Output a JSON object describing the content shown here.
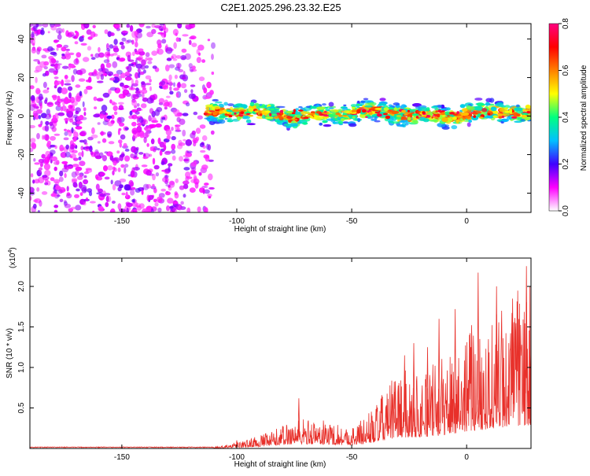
{
  "chart_data": [
    {
      "type": "heatmap",
      "title": "C2E1.2025.296.23.32.E25",
      "xlabel": "Height of straight line (km)",
      "ylabel": "Frequency (Hz)",
      "xlim": [
        -190,
        28
      ],
      "ylim": [
        -50,
        48
      ],
      "xticks": [
        -150,
        -100,
        -50,
        0
      ],
      "yticks": [
        -40,
        -20,
        0,
        20,
        40
      ],
      "noise_region_x": [
        -190,
        -110
      ],
      "signal_band": {
        "x_start": -113,
        "x_end": 28,
        "center_hz": 1,
        "half_width_hz": 7
      },
      "colorbar": {
        "label": "Normalized spectral amplitude",
        "range": [
          0.0,
          0.8
        ],
        "ticks": [
          "0.0",
          "0.2",
          "0.4",
          "0.6",
          "0.8"
        ],
        "colors": [
          "#ffffff",
          "#ff00ff",
          "#4000ff",
          "#00c0ff",
          "#00ff80",
          "#ffff00",
          "#ff8000",
          "#ff0000",
          "#ff0080"
        ]
      }
    },
    {
      "type": "line",
      "xlabel": "Height of straight line (km)",
      "ylabel": "SNR (10 * v/v)",
      "y_multiplier": "(x10",
      "y_multiplier_exp": "4",
      "y_multiplier_close": ")",
      "xlim": [
        -190,
        28
      ],
      "ylim": [
        0,
        2.35
      ],
      "xticks": [
        -150,
        -100,
        -50,
        0
      ],
      "yticks": [
        "0.5",
        "1.0",
        "1.5",
        "2.0"
      ],
      "ytick_values": [
        0.5,
        1.0,
        1.5,
        2.0
      ],
      "line_color": "#e8302a",
      "trend": [
        {
          "x": -190,
          "y": 0.01
        },
        {
          "x": -110,
          "y": 0.01
        },
        {
          "x": -100,
          "y": 0.04
        },
        {
          "x": -85,
          "y": 0.12
        },
        {
          "x": -75,
          "y": 0.22
        },
        {
          "x": -60,
          "y": 0.2
        },
        {
          "x": -50,
          "y": 0.15
        },
        {
          "x": -40,
          "y": 0.3
        },
        {
          "x": -30,
          "y": 0.55
        },
        {
          "x": -20,
          "y": 0.55
        },
        {
          "x": -10,
          "y": 0.65
        },
        {
          "x": 0,
          "y": 0.85
        },
        {
          "x": 10,
          "y": 0.95
        },
        {
          "x": 20,
          "y": 1.1
        },
        {
          "x": 28,
          "y": 1.15
        }
      ],
      "peaks": [
        {
          "x": -100,
          "y": 0.1
        },
        {
          "x": -73,
          "y": 0.62
        },
        {
          "x": -35,
          "y": 0.5
        },
        {
          "x": -31,
          "y": 0.83
        },
        {
          "x": -27,
          "y": 1.15
        },
        {
          "x": -23,
          "y": 1.3
        },
        {
          "x": -17,
          "y": 1.25
        },
        {
          "x": -12,
          "y": 1.6
        },
        {
          "x": -5,
          "y": 1.72
        },
        {
          "x": 5,
          "y": 2.17
        },
        {
          "x": 13,
          "y": 2.0
        },
        {
          "x": 20,
          "y": 1.85
        },
        {
          "x": 26,
          "y": 2.25
        }
      ]
    }
  ]
}
